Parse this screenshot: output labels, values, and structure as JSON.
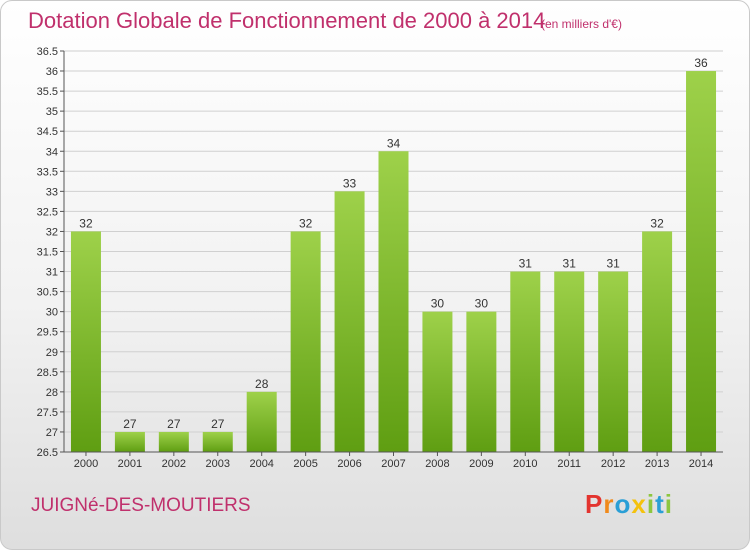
{
  "header": {
    "title": "Dotation Globale de Fonctionnement de 2000 à 2014",
    "subtitle": "(en milliers d'€)"
  },
  "footer": {
    "commune": "JUIGNé-DES-MOUTIERS",
    "logo": "Proxiti",
    "logo_colors": [
      "#e3342f",
      "#f08a1c",
      "#2a9fd6",
      "#f4c20d",
      "#8dc63f",
      "#2a9fd6",
      "#8dc63f"
    ]
  },
  "colors": {
    "bar_light": "#9ed14a",
    "bar_dark": "#5f9e12",
    "accent": "#c0306c",
    "grid": "#d0d0d0"
  },
  "chart_data": {
    "type": "bar",
    "title": "Dotation Globale de Fonctionnement de 2000 à 2014",
    "subtitle": "(en milliers d'€)",
    "categories": [
      "2000",
      "2001",
      "2002",
      "2003",
      "2004",
      "2005",
      "2006",
      "2007",
      "2008",
      "2009",
      "2010",
      "2011",
      "2012",
      "2013",
      "2014"
    ],
    "values": [
      32,
      27,
      27,
      27,
      28,
      32,
      33,
      34,
      30,
      30,
      31,
      31,
      31,
      32,
      36
    ],
    "data_labels": [
      "32",
      "27",
      "27",
      "27",
      "28",
      "32",
      "33",
      "34",
      "30",
      "30",
      "31",
      "31",
      "31",
      "32",
      "36"
    ],
    "ylim": [
      26.5,
      36.5
    ],
    "yticks": [
      "26.5",
      "27",
      "27.5",
      "28",
      "28.5",
      "29",
      "29.5",
      "30",
      "30.5",
      "31",
      "31.5",
      "32",
      "32.5",
      "33",
      "33.5",
      "34",
      "34.5",
      "35",
      "35.5",
      "36",
      "36.5"
    ],
    "grid": true,
    "legend": "none",
    "xlabel": "",
    "ylabel": ""
  }
}
